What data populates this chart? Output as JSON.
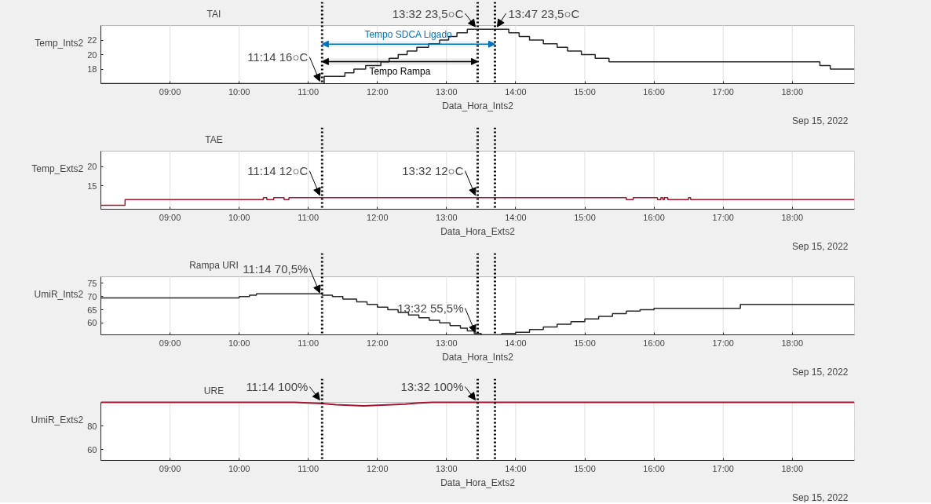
{
  "chart_data": [
    {
      "type": "step",
      "title": "TAI",
      "xlabel": "Data_Hora_Ints2",
      "ylabel": "Temp_Ints2",
      "xlim": [
        8.0,
        18.9
      ],
      "xticks": [
        {
          "value": 9,
          "label": "09:00"
        },
        {
          "value": 10,
          "label": "10:00"
        },
        {
          "value": 11,
          "label": "11:00"
        },
        {
          "value": 12,
          "label": "12:00"
        },
        {
          "value": 13,
          "label": "13:00"
        },
        {
          "value": 14,
          "label": "14:00"
        },
        {
          "value": 15,
          "label": "15:00"
        },
        {
          "value": 16,
          "label": "16:00"
        },
        {
          "value": 17,
          "label": "17:00"
        },
        {
          "value": 18,
          "label": "18:00"
        }
      ],
      "ylim": [
        16,
        24
      ],
      "yticks": [
        18,
        20,
        22
      ],
      "grid": true,
      "series": [
        {
          "color": "#262626",
          "x": [
            8.0,
            11.23,
            11.53,
            11.66,
            11.83,
            12.05,
            12.17,
            12.3,
            12.43,
            12.57,
            12.74,
            12.9,
            13.03,
            13.15,
            13.3,
            13.9,
            14.05,
            14.2,
            14.4,
            14.6,
            14.75,
            14.95,
            15.15,
            15.35,
            18.4,
            18.55,
            18.9
          ],
          "values": [
            16,
            17,
            17.5,
            18,
            18.5,
            19,
            19.5,
            20,
            20.5,
            21,
            21.5,
            22,
            22.5,
            23,
            23.5,
            23,
            22.5,
            22,
            21.5,
            21,
            20.5,
            20,
            19.5,
            19,
            18.5,
            18,
            18
          ]
        }
      ],
      "ref_lines": [
        {
          "axis": "x",
          "value": 11.2,
          "color": "#000000",
          "line_style": "dotted"
        },
        {
          "axis": "x",
          "value": 13.45,
          "color": "#000000",
          "line_style": "dotted"
        },
        {
          "axis": "x",
          "value": 13.7,
          "color": "#000000",
          "line_style": "dotted"
        }
      ],
      "bands": [
        {
          "axis": "x",
          "from": 11.2,
          "to": 13.7,
          "label": "Tempo SDCA Ligado",
          "color": "#0072bd"
        },
        {
          "axis": "x",
          "from": 11.2,
          "to": 13.45,
          "label": "Tempo Rampa",
          "color": "#000000"
        }
      ],
      "annotations": [
        {
          "text": "11:14 16○C",
          "x": 11.2,
          "y": 16
        },
        {
          "text": "13:32 23,5○C",
          "x": 13.45,
          "y": 23.5
        },
        {
          "text": "13:47 23,5○C",
          "x": 13.7,
          "y": 23.5
        },
        "Sep 15, 2022"
      ]
    },
    {
      "type": "step",
      "title": "TAE",
      "xlabel": "Data_Hora_Exts2",
      "ylabel": "Temp_Exts2",
      "xlim": [
        8.0,
        18.9
      ],
      "xticks": [
        {
          "value": 9,
          "label": "09:00"
        },
        {
          "value": 10,
          "label": "10:00"
        },
        {
          "value": 11,
          "label": "11:00"
        },
        {
          "value": 12,
          "label": "12:00"
        },
        {
          "value": 13,
          "label": "13:00"
        },
        {
          "value": 14,
          "label": "14:00"
        },
        {
          "value": 15,
          "label": "15:00"
        },
        {
          "value": 16,
          "label": "16:00"
        },
        {
          "value": 17,
          "label": "17:00"
        },
        {
          "value": 18,
          "label": "18:00"
        }
      ],
      "ylim": [
        9,
        24
      ],
      "yticks": [
        15,
        20
      ],
      "grid": true,
      "series": [
        {
          "color": "#a2142f",
          "x": [
            8.0,
            8.35,
            10.35,
            10.4,
            10.5,
            10.65,
            10.72,
            15.6,
            15.7,
            16.05,
            16.1,
            16.13,
            16.15,
            16.2,
            16.5,
            16.53,
            18.9
          ],
          "values": [
            10,
            11.5,
            12,
            11.5,
            12,
            11.5,
            12,
            11.5,
            12,
            11.5,
            12,
            11.5,
            12,
            11.5,
            12,
            11.5,
            11.5
          ]
        }
      ],
      "ref_lines": [
        {
          "axis": "x",
          "value": 11.2,
          "color": "#000000",
          "line_style": "dotted"
        },
        {
          "axis": "x",
          "value": 13.45,
          "color": "#000000",
          "line_style": "dotted"
        },
        {
          "axis": "x",
          "value": 13.7,
          "color": "#000000",
          "line_style": "dotted"
        }
      ],
      "annotations": [
        {
          "text": "11:14 12○C",
          "x": 11.2,
          "y": 12
        },
        {
          "text": "13:32 12○C",
          "x": 13.45,
          "y": 12
        },
        "Sep 15, 2022"
      ]
    },
    {
      "type": "step",
      "title": "Rampa URI",
      "xlabel": "Data_Hora_Ints2",
      "ylabel": "UmiR_Ints2",
      "xlim": [
        8.0,
        18.9
      ],
      "xticks": [
        {
          "value": 9,
          "label": "09:00"
        },
        {
          "value": 10,
          "label": "10:00"
        },
        {
          "value": 11,
          "label": "11:00"
        },
        {
          "value": 12,
          "label": "12:00"
        },
        {
          "value": 13,
          "label": "13:00"
        },
        {
          "value": 14,
          "label": "14:00"
        },
        {
          "value": 15,
          "label": "15:00"
        },
        {
          "value": 16,
          "label": "16:00"
        },
        {
          "value": 17,
          "label": "17:00"
        },
        {
          "value": 18,
          "label": "18:00"
        }
      ],
      "ylim": [
        55.5,
        77.5
      ],
      "yticks": [
        60,
        65,
        70,
        75
      ],
      "grid": true,
      "series": [
        {
          "color": "#262626",
          "x": [
            8.0,
            10.0,
            10.15,
            10.25,
            11.2,
            11.35,
            11.5,
            11.7,
            11.85,
            12.0,
            12.15,
            12.3,
            12.45,
            12.6,
            12.75,
            12.9,
            13.05,
            13.2,
            13.3,
            13.4,
            13.5,
            13.8,
            14.0,
            14.2,
            14.4,
            14.6,
            14.8,
            15.0,
            15.2,
            15.4,
            15.6,
            15.8,
            16.0,
            17.25,
            18.9
          ],
          "values": [
            69.5,
            70,
            70.5,
            71,
            70.5,
            70,
            69,
            68,
            67,
            66,
            65,
            64,
            63,
            62,
            61,
            60,
            59,
            58,
            57,
            56,
            55.5,
            56,
            56.5,
            57.5,
            58.5,
            59.5,
            60.5,
            61.5,
            62.5,
            63.5,
            64.5,
            65,
            65.5,
            67,
            67
          ]
        }
      ],
      "ref_lines": [
        {
          "axis": "x",
          "value": 11.2,
          "color": "#000000",
          "line_style": "dotted"
        },
        {
          "axis": "x",
          "value": 13.45,
          "color": "#000000",
          "line_style": "dotted"
        },
        {
          "axis": "x",
          "value": 13.7,
          "color": "#000000",
          "line_style": "dotted"
        }
      ],
      "annotations": [
        {
          "text": "11:14 70,5%",
          "x": 11.2,
          "y": 70.5
        },
        {
          "text": "13:32 55,5%",
          "x": 13.45,
          "y": 55.5
        },
        "Sep 15, 2022"
      ]
    },
    {
      "type": "line",
      "title": "URE",
      "xlabel": "Data_Hora_Exts2",
      "ylabel": "UmiR_Exts2",
      "xlim": [
        8.0,
        18.9
      ],
      "xticks": [
        {
          "value": 9,
          "label": "09:00"
        },
        {
          "value": 10,
          "label": "10:00"
        },
        {
          "value": 11,
          "label": "11:00"
        },
        {
          "value": 12,
          "label": "12:00"
        },
        {
          "value": 13,
          "label": "13:00"
        },
        {
          "value": 14,
          "label": "14:00"
        },
        {
          "value": 15,
          "label": "15:00"
        },
        {
          "value": 16,
          "label": "16:00"
        },
        {
          "value": 17,
          "label": "17:00"
        },
        {
          "value": 18,
          "label": "18:00"
        }
      ],
      "ylim": [
        51,
        100
      ],
      "yticks": [
        60,
        80
      ],
      "grid": true,
      "series": [
        {
          "color": "#a2142f",
          "x": [
            8.0,
            10.8,
            11.0,
            11.2,
            11.4,
            11.6,
            11.8,
            12.0,
            12.2,
            12.4,
            12.6,
            12.8,
            18.9
          ],
          "values": [
            100,
            100,
            99.5,
            99,
            98,
            97.5,
            97,
            97.5,
            98,
            98.5,
            99.5,
            100,
            100
          ]
        }
      ],
      "ref_lines": [
        {
          "axis": "x",
          "value": 11.2,
          "color": "#000000",
          "line_style": "dotted"
        },
        {
          "axis": "x",
          "value": 13.45,
          "color": "#000000",
          "line_style": "dotted"
        },
        {
          "axis": "x",
          "value": 13.7,
          "color": "#000000",
          "line_style": "dotted"
        }
      ],
      "annotations": [
        {
          "text": "11:14 100%",
          "x": 11.2,
          "y": 100
        },
        {
          "text": "13:32 100%",
          "x": 13.45,
          "y": 100
        },
        "Sep 15, 2022"
      ]
    }
  ]
}
